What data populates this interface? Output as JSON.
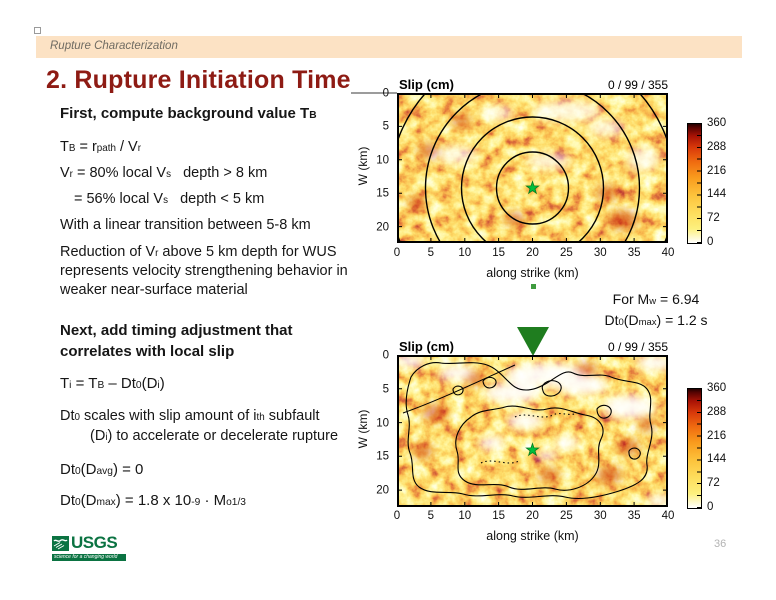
{
  "slide": {
    "header_tab": "Rupture Characterization",
    "title": "2. Rupture Initiation Time",
    "page_number": "36",
    "logo": {
      "name": "USGS",
      "tagline": "science for a changing world"
    },
    "colors": {
      "band_peach": "#fce2c4",
      "title_red": "#8e1b14",
      "usgs_green": "#0b7342",
      "marker_green": "#3f9b3f",
      "triangle_green": "#1f7d1f"
    },
    "icons": {
      "hypocenter_marker": "green-star-icon",
      "location_marker": "green-down-triangle-icon"
    }
  },
  "text_blocks": {
    "b1_heading": [
      {
        "t": "First, compute background value T"
      },
      {
        "t": "B",
        "s": "sub"
      }
    ],
    "b1_lines": [
      [
        {
          "t": "T"
        },
        {
          "t": "B",
          "s": "sub"
        },
        {
          "t": " = r"
        },
        {
          "t": "path",
          "s": "sub"
        },
        {
          "t": " / V"
        },
        {
          "t": "r",
          "s": "sub"
        }
      ],
      [
        {
          "t": "V"
        },
        {
          "t": "r",
          "s": "sub"
        },
        {
          "t": " = 80% local V"
        },
        {
          "t": "s",
          "s": "sub"
        },
        {
          "t": "   depth > 8 km"
        }
      ],
      [
        {
          "t": "= 56% local V"
        },
        {
          "t": "s",
          "s": "sub"
        },
        {
          "t": "   depth < 5 km"
        }
      ],
      [
        {
          "t": "With a linear transition between 5-8 km"
        }
      ]
    ],
    "b1_para": [
      [
        {
          "t": "Reduction of V"
        },
        {
          "t": "r",
          "s": "sub"
        },
        {
          "t": " above 5 km depth for WUS"
        }
      ],
      [
        {
          "t": "represents velocity strengthening behavior in"
        }
      ],
      [
        {
          "t": "weaker near-surface material"
        }
      ]
    ],
    "b2_heading": [
      [
        {
          "t": "Next, add timing adjustment that"
        }
      ],
      [
        {
          "t": "correlates with local slip"
        }
      ]
    ],
    "b2_eq1": [
      {
        "t": "T"
      },
      {
        "t": "i",
        "s": "sub"
      },
      {
        "t": " = T"
      },
      {
        "t": "B",
        "s": "sub"
      },
      {
        "t": " – Dt"
      },
      {
        "t": "0",
        "s": "sub"
      },
      {
        "t": "(D"
      },
      {
        "t": "i",
        "s": "sub"
      },
      {
        "t": ")"
      }
    ],
    "b2_para": [
      [
        {
          "t": "Dt"
        },
        {
          "t": "0",
          "s": "sub"
        },
        {
          "t": " scales with slip amount of i"
        },
        {
          "t": "th",
          "s": "sup"
        },
        {
          "t": " subfault"
        }
      ],
      [
        {
          "t": "(D"
        },
        {
          "t": "i",
          "s": "sub"
        },
        {
          "t": ") to accelerate or decelerate rupture"
        }
      ]
    ],
    "b2_eq2": [
      {
        "t": "Dt"
      },
      {
        "t": "0",
        "s": "sub"
      },
      {
        "t": "(D"
      },
      {
        "t": "avg",
        "s": "sub"
      },
      {
        "t": ") = 0"
      }
    ],
    "b2_eq3": [
      {
        "t": "Dt"
      },
      {
        "t": "0",
        "s": "sub"
      },
      {
        "t": "(D"
      },
      {
        "t": "max",
        "s": "sub"
      },
      {
        "t": ") = 1.8 x 10"
      },
      {
        "t": "-9",
        "s": "sup"
      },
      {
        "t": " · M"
      },
      {
        "t": "o",
        "s": "sub"
      },
      {
        "t": "1/3",
        "s": "sup"
      }
    ],
    "note": [
      [
        {
          "t": "For M"
        },
        {
          "t": "w",
          "s": "sub"
        },
        {
          "t": " = 6.94"
        }
      ],
      [
        {
          "t": "Dt"
        },
        {
          "t": "0",
          "s": "sub"
        },
        {
          "t": "(D"
        },
        {
          "t": "max",
          "s": "sub"
        },
        {
          "t": ") = 1.2 s"
        }
      ]
    ]
  },
  "chart_data": [
    {
      "type": "heatmap",
      "title": "Slip (cm)",
      "corner_label": "0 / 99 / 355",
      "slip_min_mean_max_cm": [
        0,
        99,
        355
      ],
      "xlabel": "along strike (km)",
      "ylabel": "W (km)",
      "xlim": [
        0,
        40
      ],
      "ylim_depth_km": [
        0,
        22.5
      ],
      "xticks": [
        "0",
        "5",
        "10",
        "15",
        "20",
        "25",
        "30",
        "35",
        "40"
      ],
      "yticks": [
        "0",
        "5",
        "10",
        "15",
        "20"
      ],
      "colorbar_range": [
        0,
        360
      ],
      "colorbar_ticks": [
        "360",
        "288",
        "216",
        "144",
        "72",
        "0"
      ],
      "colormap_low_to_high": [
        "#ffffff",
        "#fdf07e",
        "#fdc33c",
        "#f06c10",
        "#a81205",
        "#240000"
      ],
      "hypocenter_km": {
        "along_strike": 20,
        "depth": 14
      },
      "overlay": "concentric circular rupture-time contours centered on hypocenter (green star)"
    },
    {
      "type": "heatmap",
      "title": "Slip (cm)",
      "corner_label": "0 / 99 / 355",
      "slip_min_mean_max_cm": [
        0,
        99,
        355
      ],
      "xlabel": "along strike (km)",
      "ylabel": "W (km)",
      "xlim": [
        0,
        40
      ],
      "ylim_depth_km": [
        0,
        22.5
      ],
      "xticks": [
        "0",
        "5",
        "10",
        "15",
        "20",
        "25",
        "30",
        "35",
        "40"
      ],
      "yticks": [
        "0",
        "5",
        "10",
        "15",
        "20"
      ],
      "colorbar_range": [
        0,
        360
      ],
      "colorbar_ticks": [
        "360",
        "288",
        "216",
        "144",
        "72",
        "0"
      ],
      "colormap_low_to_high": [
        "#ffffff",
        "#fdf07e",
        "#fdc33c",
        "#f06c10",
        "#a81205",
        "#240000"
      ],
      "hypocenter_km": {
        "along_strike": 20,
        "depth": 14
      },
      "overlay": "irregular rupture-time contours correlated with local slip; green triangle marks 20 km along strike"
    }
  ]
}
